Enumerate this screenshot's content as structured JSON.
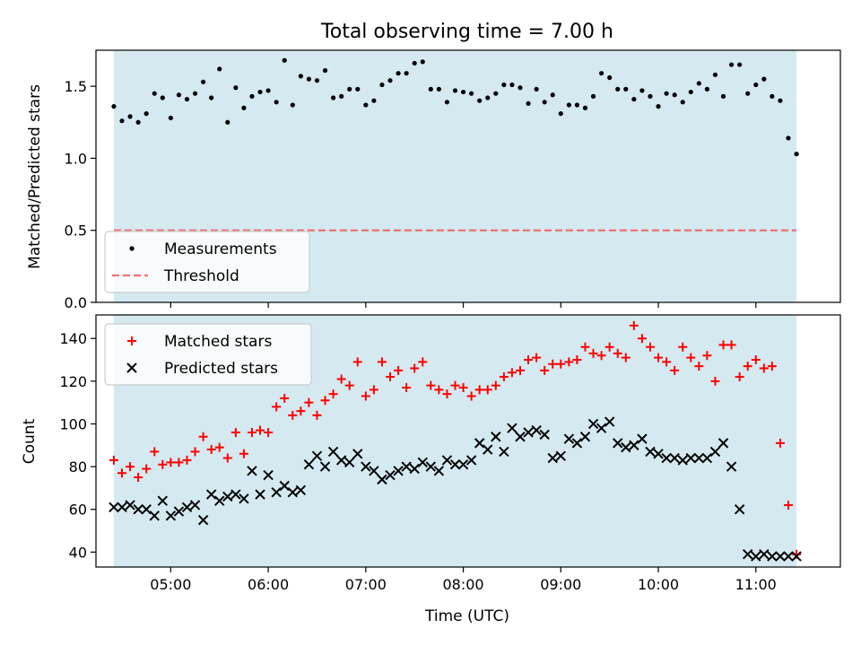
{
  "figure": {
    "title": "Total observing time = 7.00 h"
  },
  "chart_data": [
    {
      "type": "scatter",
      "ylabel": "Matched/Predicted stars",
      "xlabel": "",
      "xlim": [
        "04:14",
        "11:52"
      ],
      "ylim": [
        0,
        1.75
      ],
      "yticks": [
        0.0,
        0.5,
        1.0,
        1.5
      ],
      "ytick_labels": [
        "0.0",
        "0.5",
        "1.0",
        "1.5"
      ],
      "xticks": [
        "05:00",
        "06:00",
        "07:00",
        "08:00",
        "09:00",
        "10:00",
        "11:00"
      ],
      "xtick_labels": [],
      "shaded_span": [
        "04:25",
        "11:25"
      ],
      "shaded_color": "#d4eaf0",
      "legend": {
        "placement": "lower-left",
        "entries": [
          "Measurements",
          "Threshold"
        ]
      },
      "series": [
        {
          "name": "Measurements",
          "marker": "dot",
          "color": "#000000",
          "x": [
            "04:25",
            "04:30",
            "04:35",
            "04:40",
            "04:45",
            "04:50",
            "04:55",
            "05:00",
            "05:05",
            "05:10",
            "05:15",
            "05:20",
            "05:25",
            "05:30",
            "05:35",
            "05:40",
            "05:45",
            "05:50",
            "05:55",
            "06:00",
            "06:05",
            "06:10",
            "06:15",
            "06:20",
            "06:25",
            "06:30",
            "06:35",
            "06:40",
            "06:45",
            "06:50",
            "06:55",
            "07:00",
            "07:05",
            "07:10",
            "07:15",
            "07:20",
            "07:25",
            "07:30",
            "07:35",
            "07:40",
            "07:45",
            "07:50",
            "07:55",
            "08:00",
            "08:05",
            "08:10",
            "08:15",
            "08:20",
            "08:25",
            "08:30",
            "08:35",
            "08:40",
            "08:45",
            "08:50",
            "08:55",
            "09:00",
            "09:05",
            "09:10",
            "09:15",
            "09:20",
            "09:25",
            "09:30",
            "09:35",
            "09:40",
            "09:45",
            "09:50",
            "09:55",
            "10:00",
            "10:05",
            "10:10",
            "10:15",
            "10:20",
            "10:25",
            "10:30",
            "10:35",
            "10:40",
            "10:45",
            "10:50",
            "10:55",
            "11:00",
            "11:05",
            "11:10",
            "11:15",
            "11:20",
            "11:25"
          ],
          "y": [
            1.36,
            1.26,
            1.29,
            1.25,
            1.31,
            1.45,
            1.42,
            1.28,
            1.44,
            1.41,
            1.45,
            1.53,
            1.42,
            1.62,
            1.25,
            1.49,
            1.35,
            1.43,
            1.46,
            1.47,
            1.39,
            1.68,
            1.37,
            1.57,
            1.55,
            1.54,
            1.61,
            1.42,
            1.43,
            1.48,
            1.48,
            1.37,
            1.4,
            1.51,
            1.54,
            1.59,
            1.59,
            1.66,
            1.67,
            1.48,
            1.48,
            1.39,
            1.47,
            1.46,
            1.45,
            1.4,
            1.42,
            1.45,
            1.51,
            1.51,
            1.49,
            1.38,
            1.48,
            1.39,
            1.44,
            1.31,
            1.37,
            1.37,
            1.35,
            1.43,
            1.59,
            1.56,
            1.48,
            1.48,
            1.41,
            1.47,
            1.43,
            1.36,
            1.45,
            1.44,
            1.39,
            1.46,
            1.52,
            1.48,
            1.58,
            1.43,
            1.65,
            1.65,
            1.45,
            1.51,
            1.55,
            1.43,
            1.4,
            1.14,
            1.03
          ]
        },
        {
          "name": "Threshold",
          "style": "dashed",
          "color": "#f07070",
          "x": [
            "04:25",
            "11:25"
          ],
          "y": [
            0.5,
            0.5
          ]
        }
      ]
    },
    {
      "type": "scatter",
      "ylabel": "Count",
      "xlabel": "Time (UTC)",
      "xlim": [
        "04:14",
        "11:52"
      ],
      "ylim": [
        33,
        151
      ],
      "yticks": [
        40,
        60,
        80,
        100,
        120,
        140
      ],
      "ytick_labels": [
        "40",
        "60",
        "80",
        "100",
        "120",
        "140"
      ],
      "xticks": [
        "05:00",
        "06:00",
        "07:00",
        "08:00",
        "09:00",
        "10:00",
        "11:00"
      ],
      "xtick_labels": [
        "05:00",
        "06:00",
        "07:00",
        "08:00",
        "09:00",
        "10:00",
        "11:00"
      ],
      "shaded_span": [
        "04:25",
        "11:25"
      ],
      "shaded_color": "#d4eaf0",
      "legend": {
        "placement": "upper-left",
        "entries": [
          "Matched stars",
          "Predicted stars"
        ]
      },
      "series": [
        {
          "name": "Matched stars",
          "marker": "plus",
          "color": "#ff0000",
          "x": [
            "04:25",
            "04:30",
            "04:35",
            "04:40",
            "04:45",
            "04:50",
            "04:55",
            "05:00",
            "05:05",
            "05:10",
            "05:15",
            "05:20",
            "05:25",
            "05:30",
            "05:35",
            "05:40",
            "05:45",
            "05:50",
            "05:55",
            "06:00",
            "06:05",
            "06:10",
            "06:15",
            "06:20",
            "06:25",
            "06:30",
            "06:35",
            "06:40",
            "06:45",
            "06:50",
            "06:55",
            "07:00",
            "07:05",
            "07:10",
            "07:15",
            "07:20",
            "07:25",
            "07:30",
            "07:35",
            "07:40",
            "07:45",
            "07:50",
            "07:55",
            "08:00",
            "08:05",
            "08:10",
            "08:15",
            "08:20",
            "08:25",
            "08:30",
            "08:35",
            "08:40",
            "08:45",
            "08:50",
            "08:55",
            "09:00",
            "09:05",
            "09:10",
            "09:15",
            "09:20",
            "09:25",
            "09:30",
            "09:35",
            "09:40",
            "09:45",
            "09:50",
            "09:55",
            "10:00",
            "10:05",
            "10:10",
            "10:15",
            "10:20",
            "10:25",
            "10:30",
            "10:35",
            "10:40",
            "10:45",
            "10:50",
            "10:55",
            "11:00",
            "11:05",
            "11:10",
            "11:15",
            "11:20",
            "11:25"
          ],
          "y": [
            83,
            77,
            80,
            75,
            79,
            87,
            81,
            82,
            82,
            83,
            87,
            94,
            88,
            89,
            84,
            96,
            86,
            96,
            97,
            96,
            108,
            112,
            104,
            106,
            110,
            104,
            111,
            114,
            121,
            118,
            129,
            113,
            116,
            129,
            122,
            125,
            117,
            126,
            129,
            118,
            116,
            114,
            118,
            117,
            113,
            116,
            116,
            118,
            122,
            124,
            125,
            130,
            131,
            125,
            128,
            128,
            129,
            130,
            136,
            133,
            132,
            136,
            133,
            131,
            146,
            140,
            136,
            131,
            129,
            125,
            136,
            131,
            127,
            132,
            120,
            137,
            137,
            122,
            127,
            130,
            126,
            127,
            91,
            62,
            39
          ]
        },
        {
          "name": "Predicted stars",
          "marker": "x",
          "color": "#000000",
          "x": [
            "04:25",
            "04:30",
            "04:35",
            "04:40",
            "04:45",
            "04:50",
            "04:55",
            "05:00",
            "05:05",
            "05:10",
            "05:15",
            "05:20",
            "05:25",
            "05:30",
            "05:35",
            "05:40",
            "05:45",
            "05:50",
            "05:55",
            "06:00",
            "06:05",
            "06:10",
            "06:15",
            "06:20",
            "06:25",
            "06:30",
            "06:35",
            "06:40",
            "06:45",
            "06:50",
            "06:55",
            "07:00",
            "07:05",
            "07:10",
            "07:15",
            "07:20",
            "07:25",
            "07:30",
            "07:35",
            "07:40",
            "07:45",
            "07:50",
            "07:55",
            "08:00",
            "08:05",
            "08:10",
            "08:15",
            "08:20",
            "08:25",
            "08:30",
            "08:35",
            "08:40",
            "08:45",
            "08:50",
            "08:55",
            "09:00",
            "09:05",
            "09:10",
            "09:15",
            "09:20",
            "09:25",
            "09:30",
            "09:35",
            "09:40",
            "09:45",
            "09:50",
            "09:55",
            "10:00",
            "10:05",
            "10:10",
            "10:15",
            "10:20",
            "10:25",
            "10:30",
            "10:35",
            "10:40",
            "10:45",
            "10:50",
            "10:55",
            "11:00",
            "11:05",
            "11:10",
            "11:15",
            "11:20",
            "11:25"
          ],
          "y": [
            61,
            61,
            62,
            60,
            60,
            57,
            64,
            57,
            59,
            61,
            62,
            55,
            67,
            64,
            66,
            67,
            65,
            78,
            67,
            76,
            68,
            71,
            68,
            69,
            81,
            85,
            80,
            87,
            83,
            82,
            86,
            80,
            78,
            74,
            76,
            78,
            80,
            79,
            82,
            80,
            78,
            83,
            81,
            81,
            83,
            91,
            88,
            94,
            87,
            98,
            94,
            96,
            97,
            95,
            84,
            85,
            93,
            91,
            94,
            100,
            98,
            101,
            91,
            89,
            90,
            93,
            87,
            86,
            84,
            84,
            83,
            84,
            84,
            84,
            87,
            91,
            80,
            60,
            39,
            38,
            39,
            38,
            38,
            38,
            38
          ]
        }
      ]
    }
  ]
}
